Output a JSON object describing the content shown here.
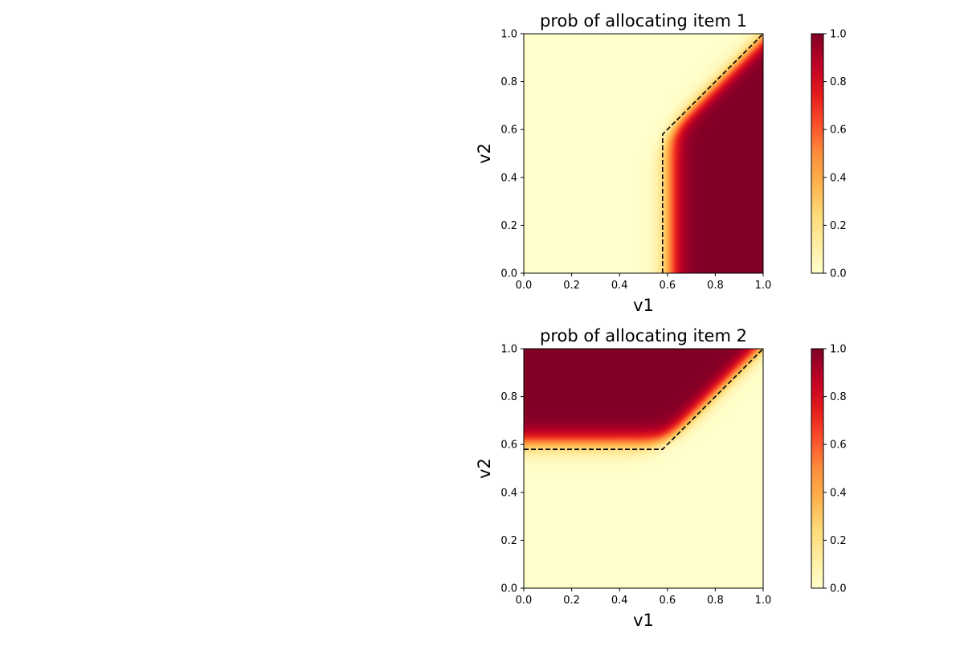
{
  "chart_data": [
    {
      "type": "heatmap",
      "title": "prob of allocating item 1",
      "xlabel": "v1",
      "ylabel": "v2",
      "xlim": [
        0,
        1
      ],
      "ylim": [
        0,
        1
      ],
      "xticks": [
        "0.0",
        "0.2",
        "0.4",
        "0.6",
        "0.8",
        "1.0"
      ],
      "yticks": [
        "0.0",
        "0.2",
        "0.4",
        "0.6",
        "0.8",
        "1.0"
      ],
      "colorbar": {
        "range": [
          0,
          1
        ],
        "ticks": [
          "0.0",
          "0.2",
          "0.4",
          "0.6",
          "0.8",
          "1.0"
        ],
        "colormap": "YlOrRd"
      },
      "region": "value ~1 where v1 > 0.58 and v1 - v2 > 0; value ~0 elsewhere",
      "boundary": {
        "style": "dashed",
        "color": "#000000",
        "points": [
          [
            0.58,
            0.0
          ],
          [
            0.58,
            0.58
          ],
          [
            1.0,
            1.0
          ]
        ]
      }
    },
    {
      "type": "heatmap",
      "title": "prob of allocating item 2",
      "xlabel": "v1",
      "ylabel": "v2",
      "xlim": [
        0,
        1
      ],
      "ylim": [
        0,
        1
      ],
      "xticks": [
        "0.0",
        "0.2",
        "0.4",
        "0.6",
        "0.8",
        "1.0"
      ],
      "yticks": [
        "0.0",
        "0.2",
        "0.4",
        "0.6",
        "0.8",
        "1.0"
      ],
      "colorbar": {
        "range": [
          0,
          1
        ],
        "ticks": [
          "0.0",
          "0.2",
          "0.4",
          "0.6",
          "0.8",
          "1.0"
        ],
        "colormap": "YlOrRd"
      },
      "region": "value ~1 where v2 > 0.58 and v2 - v1 > 0; value ~0 elsewhere",
      "boundary": {
        "style": "dashed",
        "color": "#000000",
        "points": [
          [
            0.0,
            0.58
          ],
          [
            0.58,
            0.58
          ],
          [
            1.0,
            1.0
          ]
        ]
      }
    }
  ]
}
